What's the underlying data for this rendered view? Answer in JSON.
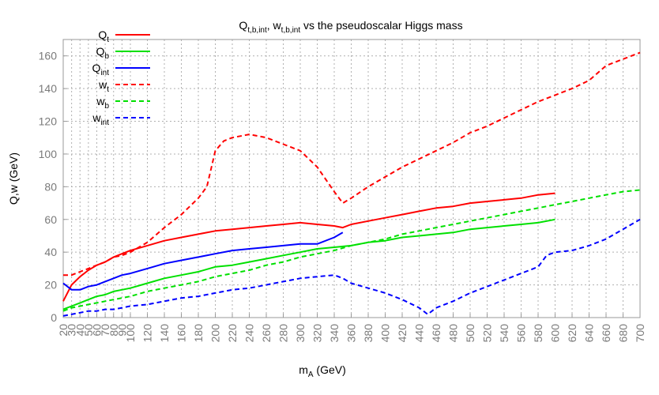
{
  "chart_data": {
    "type": "line",
    "title": {
      "main": "Q",
      "sub": "t,b,int",
      "mid": ", w",
      "sub2": "t,b,int",
      "rest": " vs the pseudoscalar Higgs mass"
    },
    "xlabel": {
      "main": "m",
      "sub": "A",
      "rest": " (GeV)"
    },
    "ylabel": "Q,w (GeV)",
    "xlim": [
      20,
      700
    ],
    "ylim": [
      0,
      170
    ],
    "x_ticks": [
      "20",
      "30",
      "40",
      "50",
      "60",
      "70",
      "80",
      "90",
      "100",
      "120",
      "140",
      "160",
      "180",
      "200",
      "220",
      "240",
      "260",
      "280",
      "300",
      "320",
      "340",
      "360",
      "380",
      "400",
      "420",
      "440",
      "460",
      "480",
      "500",
      "520",
      "540",
      "560",
      "580",
      "600",
      "620",
      "640",
      "660",
      "680",
      "700"
    ],
    "y_ticks": [
      "0",
      "20",
      "40",
      "60",
      "80",
      "100",
      "120",
      "140",
      "160"
    ],
    "grid": true,
    "legend_placement": "top-left",
    "series": [
      {
        "id": "Qt",
        "name_main": "Q",
        "name_sub": "t",
        "color": "#ff0000",
        "dash": "solid",
        "x": [
          20,
          30,
          40,
          50,
          60,
          70,
          80,
          90,
          100,
          120,
          140,
          160,
          180,
          200,
          220,
          240,
          260,
          280,
          300,
          320,
          340,
          350,
          360,
          380,
          400,
          420,
          440,
          460,
          480,
          500,
          520,
          540,
          560,
          580,
          600
        ],
        "y": [
          10,
          20,
          25,
          29,
          32,
          34,
          37,
          39,
          41,
          44,
          47,
          49,
          51,
          53,
          54,
          55,
          56,
          57,
          58,
          57,
          56,
          55,
          57,
          59,
          61,
          63,
          65,
          67,
          68,
          70,
          71,
          72,
          73,
          75,
          76
        ]
      },
      {
        "id": "Qb",
        "name_main": "Q",
        "name_sub": "b",
        "color": "#00e000",
        "dash": "solid",
        "x": [
          20,
          30,
          40,
          50,
          60,
          70,
          80,
          90,
          100,
          120,
          140,
          160,
          180,
          200,
          220,
          240,
          260,
          280,
          300,
          320,
          340,
          360,
          380,
          400,
          420,
          440,
          460,
          480,
          500,
          520,
          540,
          560,
          580,
          600
        ],
        "y": [
          5,
          7,
          9,
          11,
          13,
          14,
          16,
          17,
          18,
          21,
          24,
          26,
          28,
          31,
          32,
          34,
          36,
          38,
          40,
          42,
          43,
          44,
          46,
          47,
          49,
          50,
          51,
          52,
          54,
          55,
          56,
          57,
          58,
          60
        ]
      },
      {
        "id": "Qint",
        "name_main": "Q",
        "name_sub": "int",
        "color": "#0000ff",
        "dash": "solid",
        "x": [
          20,
          30,
          40,
          50,
          60,
          70,
          80,
          90,
          100,
          120,
          140,
          160,
          180,
          200,
          220,
          240,
          260,
          280,
          300,
          320,
          340,
          350
        ],
        "y": [
          21,
          17,
          17,
          19,
          20,
          22,
          24,
          26,
          27,
          30,
          33,
          35,
          37,
          39,
          41,
          42,
          43,
          44,
          45,
          45,
          49,
          52
        ]
      },
      {
        "id": "wt",
        "name_main": "w",
        "name_sub": "t",
        "color": "#ff0000",
        "dash": "dashed",
        "x": [
          20,
          30,
          40,
          50,
          60,
          70,
          80,
          90,
          100,
          120,
          140,
          160,
          180,
          190,
          200,
          210,
          220,
          240,
          260,
          280,
          300,
          320,
          340,
          350,
          360,
          380,
          400,
          420,
          440,
          460,
          480,
          500,
          520,
          540,
          560,
          580,
          600,
          620,
          640,
          660,
          680,
          700
        ],
        "y": [
          26,
          26,
          28,
          30,
          32,
          34,
          37,
          38,
          40,
          46,
          55,
          63,
          73,
          80,
          102,
          108,
          110,
          112,
          110,
          106,
          102,
          92,
          77,
          70,
          73,
          80,
          86,
          92,
          97,
          102,
          107,
          113,
          117,
          122,
          127,
          132,
          136,
          140,
          145,
          154,
          158,
          162
        ]
      },
      {
        "id": "wb",
        "name_main": "w",
        "name_sub": "b",
        "color": "#00e000",
        "dash": "dashed",
        "x": [
          20,
          30,
          40,
          50,
          60,
          70,
          80,
          90,
          100,
          120,
          140,
          160,
          180,
          200,
          220,
          240,
          260,
          280,
          300,
          320,
          340,
          360,
          380,
          400,
          420,
          440,
          460,
          480,
          500,
          520,
          540,
          560,
          580,
          600,
          620,
          640,
          660,
          680,
          700
        ],
        "y": [
          4,
          6,
          7,
          8,
          9,
          10,
          11,
          12,
          13,
          16,
          18,
          20,
          22,
          25,
          27,
          29,
          32,
          34,
          37,
          39,
          41,
          44,
          46,
          48,
          51,
          53,
          55,
          57,
          59,
          61,
          63,
          65,
          67,
          69,
          71,
          73,
          75,
          77,
          78
        ]
      },
      {
        "id": "wint",
        "name_main": "w",
        "name_sub": "int",
        "color": "#0000ff",
        "dash": "dashed",
        "x": [
          20,
          30,
          40,
          50,
          60,
          70,
          80,
          90,
          100,
          120,
          140,
          160,
          180,
          200,
          220,
          240,
          260,
          280,
          300,
          320,
          340,
          350,
          360,
          380,
          400,
          420,
          440,
          450,
          460,
          480,
          500,
          520,
          540,
          560,
          580,
          590,
          600,
          620,
          640,
          660,
          680,
          700
        ],
        "y": [
          1,
          2,
          3,
          4,
          4,
          5,
          5,
          6,
          7,
          8,
          10,
          12,
          13,
          15,
          17,
          18,
          20,
          22,
          24,
          25,
          26,
          24,
          21,
          18,
          15,
          11,
          6,
          2,
          6,
          10,
          15,
          19,
          23,
          27,
          31,
          38,
          40,
          41,
          44,
          48,
          54,
          60
        ]
      }
    ]
  }
}
